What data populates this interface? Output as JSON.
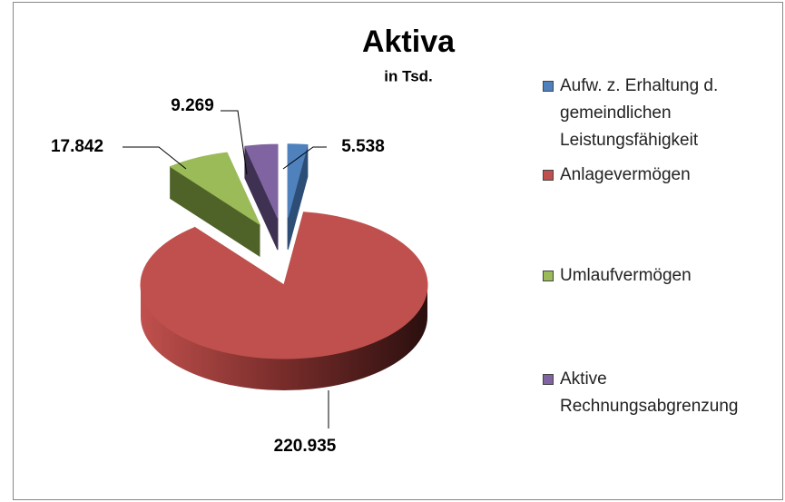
{
  "chart_data": {
    "type": "pie3d",
    "title": "Aktiva",
    "subtitle": "in Tsd.",
    "categories": [
      "Aufw. z. Erhaltung d. gemeindlichen Leistungsfähigkeit",
      "Anlagevermögen",
      "Umlaufvermögen",
      "Aktive Rechnungsabgrenzung"
    ],
    "values": [
      5538,
      220935,
      17842,
      9269
    ],
    "value_labels": [
      "5.538",
      "220.935",
      "17.842",
      "9.269"
    ],
    "colors": [
      "#4f81bd",
      "#c0504d",
      "#9bbb59",
      "#8064a2"
    ],
    "side_colors": [
      "#2c4d75",
      "#772c2a",
      "#4f6228",
      "#3f3151"
    ],
    "legend": "right"
  }
}
